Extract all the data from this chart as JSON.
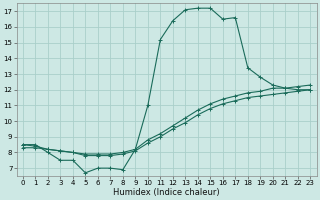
{
  "title": "",
  "xlabel": "Humidex (Indice chaleur)",
  "ylabel": "",
  "xlim": [
    -0.5,
    23.5
  ],
  "ylim": [
    6.5,
    17.5
  ],
  "xticks": [
    0,
    1,
    2,
    3,
    4,
    5,
    6,
    7,
    8,
    9,
    10,
    11,
    12,
    13,
    14,
    15,
    16,
    17,
    18,
    19,
    20,
    21,
    22,
    23
  ],
  "yticks": [
    7,
    8,
    9,
    10,
    11,
    12,
    13,
    14,
    15,
    16,
    17
  ],
  "bg_color": "#cde8e4",
  "grid_color": "#aacfca",
  "line_color": "#1a6b5a",
  "lines": [
    {
      "x": [
        0,
        1,
        2,
        3,
        4,
        5,
        6,
        7,
        8,
        9,
        10,
        11,
        12,
        13,
        14,
        15,
        16,
        17,
        18,
        19,
        20,
        21,
        22,
        23
      ],
      "y": [
        8.5,
        8.5,
        8.0,
        7.5,
        7.5,
        6.7,
        7.0,
        7.0,
        6.9,
        8.2,
        11.0,
        15.2,
        16.4,
        17.1,
        17.2,
        17.2,
        16.5,
        16.6,
        13.4,
        12.8,
        12.3,
        12.1,
        12.0,
        12.0
      ]
    },
    {
      "x": [
        0,
        1,
        2,
        3,
        4,
        5,
        6,
        7,
        8,
        9,
        10,
        11,
        12,
        13,
        14,
        15,
        16,
        17,
        18,
        19,
        20,
        21,
        22,
        23
      ],
      "y": [
        8.5,
        8.4,
        8.2,
        8.1,
        8.0,
        7.9,
        7.9,
        7.9,
        8.0,
        8.2,
        8.8,
        9.2,
        9.7,
        10.2,
        10.7,
        11.1,
        11.4,
        11.6,
        11.8,
        11.9,
        12.1,
        12.1,
        12.2,
        12.3
      ]
    },
    {
      "x": [
        0,
        1,
        2,
        3,
        4,
        5,
        6,
        7,
        8,
        9,
        10,
        11,
        12,
        13,
        14,
        15,
        16,
        17,
        18,
        19,
        20,
        21,
        22,
        23
      ],
      "y": [
        8.3,
        8.3,
        8.2,
        8.1,
        8.0,
        7.8,
        7.8,
        7.8,
        7.9,
        8.1,
        8.6,
        9.0,
        9.5,
        9.9,
        10.4,
        10.8,
        11.1,
        11.3,
        11.5,
        11.6,
        11.7,
        11.8,
        11.9,
        12.0
      ]
    }
  ],
  "tick_fontsize": 5.0,
  "xlabel_fontsize": 6.0,
  "linewidth": 0.8,
  "markersize": 2.5,
  "markeredgewidth": 0.7
}
